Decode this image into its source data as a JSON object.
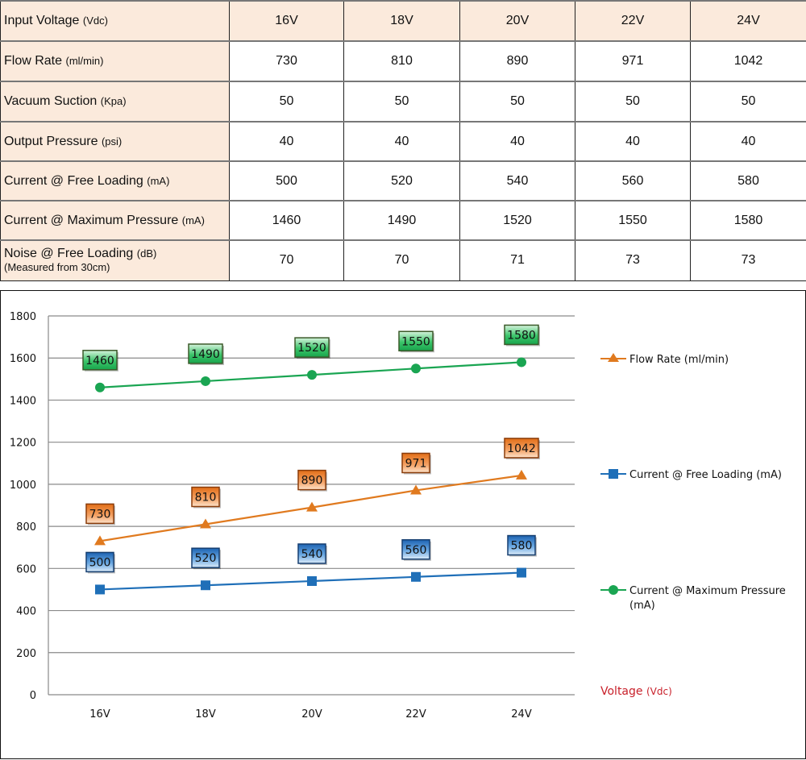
{
  "table": {
    "header": {
      "label": "Input Voltage",
      "unit": "(Vdc)",
      "values": [
        "16V",
        "18V",
        "20V",
        "22V",
        "24V"
      ]
    },
    "rows": [
      {
        "label": "Flow Rate",
        "unit": "(ml/min)",
        "values": [
          "730",
          "810",
          "890",
          "971",
          "1042"
        ]
      },
      {
        "label": "Vacuum Suction",
        "unit": "(Kpa)",
        "values": [
          "50",
          "50",
          "50",
          "50",
          "50"
        ]
      },
      {
        "label": "Output Pressure",
        "unit": "(psi)",
        "values": [
          "40",
          "40",
          "40",
          "40",
          "40"
        ]
      },
      {
        "label": "Current @ Free Loading",
        "unit": "(mA)",
        "values": [
          "500",
          "520",
          "540",
          "560",
          "580"
        ]
      },
      {
        "label": "Current @ Maximum Pressure",
        "unit": "(mA)",
        "values": [
          "1460",
          "1490",
          "1520",
          "1550",
          "1580"
        ]
      },
      {
        "label": "Noise @ Free Loading",
        "unit": "(dB)",
        "note": "(Measured from 30cm)",
        "values": [
          "70",
          "70",
          "71",
          "73",
          "73"
        ]
      }
    ]
  },
  "chart_data": {
    "type": "line",
    "title": "",
    "xlabel": "Voltage",
    "xlabel_unit": "(Vdc)",
    "ylabel": "",
    "ylim": [
      0,
      1800
    ],
    "yticks": [
      "0",
      "200",
      "400",
      "600",
      "800",
      "1000",
      "1200",
      "1400",
      "1600",
      "1800"
    ],
    "grid": true,
    "legend_position": "right",
    "categories": [
      "16V",
      "18V",
      "20V",
      "22V",
      "24V"
    ],
    "series": [
      {
        "name": "Flow Rate (ml/min)",
        "marker": "triangle",
        "color": "#e07a1f",
        "values": [
          730,
          810,
          890,
          971,
          1042
        ]
      },
      {
        "name": "Current @ Free Loading (mA)",
        "marker": "square",
        "color": "#1f6fb8",
        "values": [
          500,
          520,
          540,
          560,
          580
        ]
      },
      {
        "name": "Current @ Maximum Pressure (mA)",
        "marker": "circle",
        "color": "#1aa552",
        "values": [
          1460,
          1490,
          1520,
          1550,
          1580
        ]
      }
    ],
    "legend": {
      "flow": "Flow Rate (ml/min)",
      "free": "Current @ Free Loading (mA)",
      "max_line1": "Current @ Maximum Pressure",
      "max_line2": "(mA)"
    }
  }
}
